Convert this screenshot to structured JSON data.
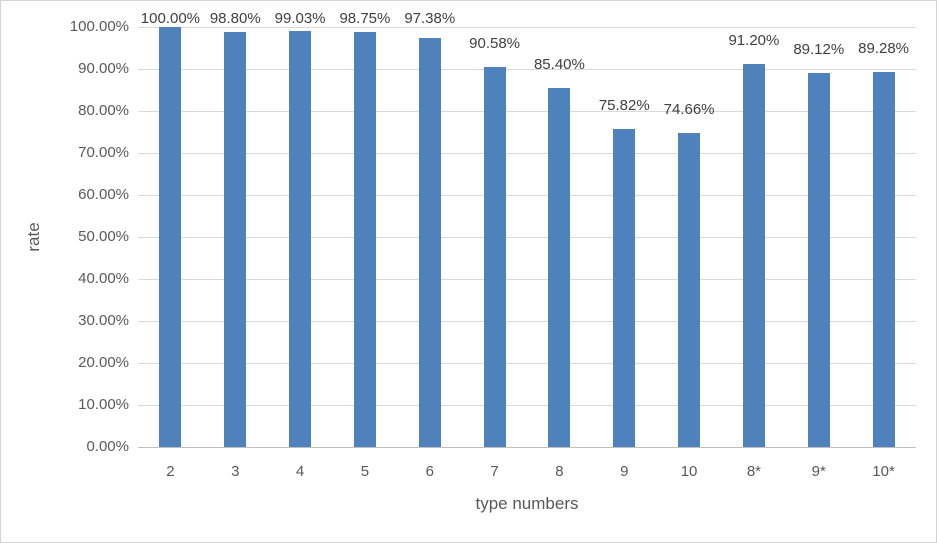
{
  "chart_data": {
    "type": "bar",
    "title": "",
    "xlabel": "type numbers",
    "ylabel": "rate",
    "categories": [
      "2",
      "3",
      "4",
      "5",
      "6",
      "7",
      "8",
      "9",
      "10",
      "8*",
      "9*",
      "10*"
    ],
    "values": [
      100.0,
      98.8,
      99.03,
      98.75,
      97.38,
      90.58,
      85.4,
      75.82,
      74.66,
      91.2,
      89.12,
      89.28
    ],
    "data_labels": [
      "100.00%",
      "98.80%",
      "99.03%",
      "98.75%",
      "97.38%",
      "90.58%",
      "85.40%",
      "75.82%",
      "74.66%",
      "91.20%",
      "89.12%",
      "89.28%"
    ],
    "y_tick_labels": [
      "0.00%",
      "10.00%",
      "20.00%",
      "30.00%",
      "40.00%",
      "50.00%",
      "60.00%",
      "70.00%",
      "80.00%",
      "90.00%",
      "100.00%"
    ],
    "ylim": [
      0,
      100
    ],
    "y_tick_step": 10,
    "grid": true,
    "legend": "none",
    "colors": {
      "bar": "#4f81bd",
      "gridline": "#d9d9d9",
      "axis_line": "#bfbfbf",
      "tick_text": "#595959",
      "data_label_text": "#404040",
      "axis_title_text": "#595959",
      "chart_border": "#d3d3d3",
      "background": "#ffffff"
    }
  }
}
